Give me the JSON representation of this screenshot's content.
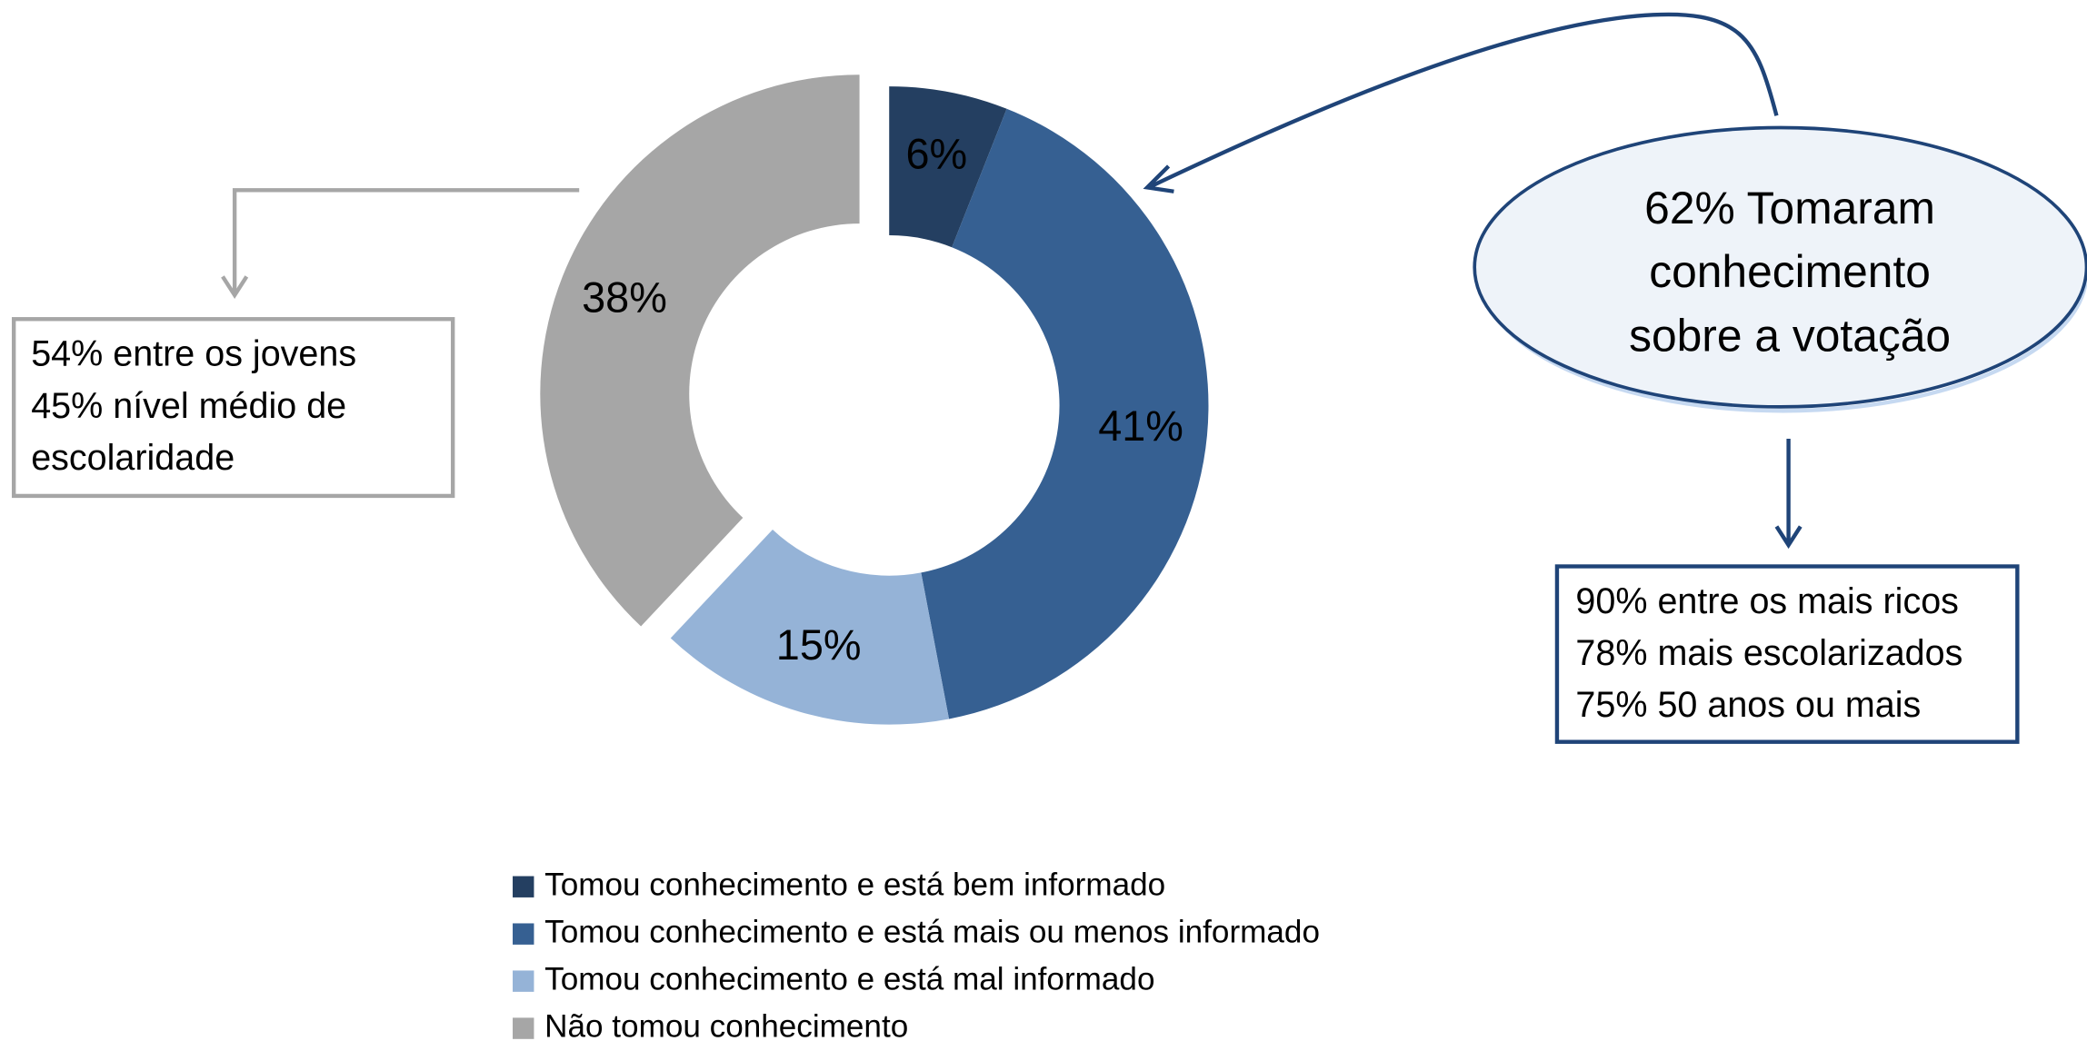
{
  "chart_data": {
    "type": "pie",
    "categories": [
      "Tomou conhecimento e está bem informado",
      "Tomou conhecimento e está mais ou menos informado",
      "Tomou conhecimento e está mal informado",
      "Não tomou conhecimento"
    ],
    "values": [
      6,
      41,
      15,
      38
    ],
    "value_labels": [
      "6%",
      "41%",
      "15%",
      "38%"
    ],
    "colors": [
      "#243f61",
      "#366092",
      "#95b3d7",
      "#a6a6a6"
    ],
    "donut": true,
    "annotations": {
      "left_box": [
        "54% entre os jovens",
        "45% nível médio de",
        "escolaridade"
      ],
      "ellipse": [
        "62% Tomaram",
        "conhecimento",
        "sobre a votação"
      ],
      "right_box": [
        "90% entre os mais ricos",
        "78% mais escolarizados",
        "75% 50 anos ou mais"
      ]
    }
  }
}
